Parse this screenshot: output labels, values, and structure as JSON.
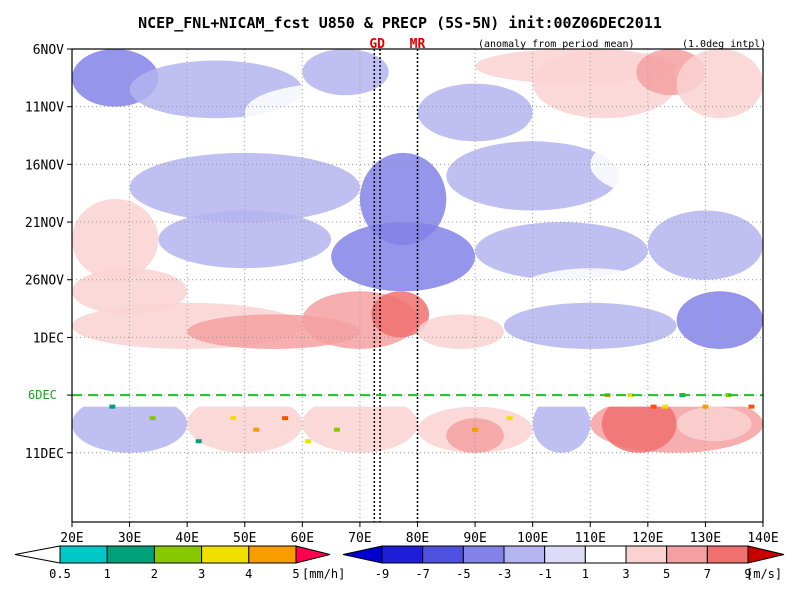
{
  "chart_data": {
    "type": "heatmap",
    "title": "NCEP_FNL+NICAM_fcst U850 & PRECP (5S-5N) init:00Z06DEC2011",
    "note_left": "(anomaly from period mean)",
    "note_right": "(1.0deg intpl)",
    "marker_labels": [
      "GD",
      "MR"
    ],
    "marker_lines_lon": [
      72.5,
      73.5,
      80
    ],
    "x_axis": {
      "min": 20,
      "max": 140,
      "ticks": [
        20,
        30,
        40,
        50,
        60,
        70,
        80,
        90,
        100,
        110,
        120,
        130,
        140
      ],
      "tick_labels": [
        "20E",
        "30E",
        "40E",
        "50E",
        "60E",
        "70E",
        "80E",
        "90E",
        "100E",
        "110E",
        "120E",
        "130E",
        "140E"
      ]
    },
    "y_axis": {
      "start": "6NOV",
      "span_days": 41,
      "ticks_day": [
        0,
        5,
        10,
        15,
        20,
        25,
        30,
        35
      ],
      "tick_labels": [
        "6NOV",
        "11NOV",
        "16NOV",
        "21NOV",
        "26NOV",
        "1DEC",
        "6DEC",
        "11DEC"
      ],
      "inverted": true
    },
    "grid": true,
    "data_gap_days": [
      26,
      31
    ],
    "forecast_init_day": 30,
    "forecast_init_label": "6DEC",
    "precip_legend": {
      "labels": [
        "0.5",
        "1",
        "2",
        "3",
        "4",
        "5"
      ],
      "unit": "[mm/h]",
      "colors": [
        "#00c8c8",
        "#00a078",
        "#88c800",
        "#f0e000",
        "#f89c00",
        "#ff5000",
        "#ff0050"
      ]
    },
    "wind_legend": {
      "labels": [
        "-9",
        "-7",
        "-5",
        "-3",
        "-1",
        "1",
        "3",
        "5",
        "7",
        "9"
      ],
      "unit": "[m/s]",
      "colors": [
        "#0000d0",
        "#1e1ed8",
        "#5050e0",
        "#8282e8",
        "#b4b4f0",
        "#dcdcf8",
        "#ffffff",
        "#fad2d2",
        "#f5a0a0",
        "#f07070",
        "#e84040",
        "#e01010",
        "#c80000"
      ]
    },
    "u850_anomaly_regions": [
      {
        "lon": [
          20,
          35
        ],
        "day": [
          0,
          5
        ],
        "u": -4
      },
      {
        "lon": [
          30,
          60
        ],
        "day": [
          1,
          6
        ],
        "u": -3
      },
      {
        "lon": [
          50,
          80
        ],
        "day": [
          3,
          8
        ],
        "u": 2
      },
      {
        "lon": [
          60,
          75
        ],
        "day": [
          0,
          4
        ],
        "u": -3
      },
      {
        "lon": [
          90,
          125
        ],
        "day": [
          0,
          3
        ],
        "u": 3
      },
      {
        "lon": [
          100,
          125
        ],
        "day": [
          0,
          6
        ],
        "u": 4
      },
      {
        "lon": [
          118,
          130
        ],
        "day": [
          0,
          4
        ],
        "u": 6
      },
      {
        "lon": [
          125,
          140
        ],
        "day": [
          0,
          6
        ],
        "u": 3
      },
      {
        "lon": [
          80,
          100
        ],
        "day": [
          3,
          8
        ],
        "u": -3
      },
      {
        "lon": [
          20,
          45
        ],
        "day": [
          7,
          13
        ],
        "u": 2
      },
      {
        "lon": [
          30,
          70
        ],
        "day": [
          9,
          15
        ],
        "u": -3
      },
      {
        "lon": [
          70,
          85
        ],
        "day": [
          9,
          17
        ],
        "u": -5
      },
      {
        "lon": [
          85,
          115
        ],
        "day": [
          8,
          14
        ],
        "u": -2
      },
      {
        "lon": [
          110,
          140
        ],
        "day": [
          7,
          13
        ],
        "u": 2
      },
      {
        "lon": [
          20,
          35
        ],
        "day": [
          13,
          20
        ],
        "u": 3
      },
      {
        "lon": [
          35,
          65
        ],
        "day": [
          14,
          19
        ],
        "u": -3
      },
      {
        "lon": [
          65,
          90
        ],
        "day": [
          15,
          21
        ],
        "u": -5
      },
      {
        "lon": [
          90,
          120
        ],
        "day": [
          15,
          20
        ],
        "u": -3
      },
      {
        "lon": [
          120,
          140
        ],
        "day": [
          14,
          20
        ],
        "u": -2
      },
      {
        "lon": [
          20,
          40
        ],
        "day": [
          19,
          23
        ],
        "u": 4
      },
      {
        "lon": [
          40,
          70
        ],
        "day": [
          19,
          24
        ],
        "u": 2
      },
      {
        "lon": [
          95,
          125
        ],
        "day": [
          19,
          25
        ],
        "u": 2
      },
      {
        "lon": [
          125,
          140
        ],
        "day": [
          21,
          26
        ],
        "u": -5
      },
      {
        "lon": [
          20,
          60
        ],
        "day": [
          22,
          26
        ],
        "u": 4
      },
      {
        "lon": [
          40,
          70
        ],
        "day": [
          23,
          26
        ],
        "u": 6
      },
      {
        "lon": [
          60,
          80
        ],
        "day": [
          21,
          26
        ],
        "u": 5
      },
      {
        "lon": [
          72,
          82
        ],
        "day": [
          21,
          25
        ],
        "u": 8
      },
      {
        "lon": [
          80,
          95
        ],
        "day": [
          23,
          26
        ],
        "u": 3
      },
      {
        "lon": [
          95,
          125
        ],
        "day": [
          22,
          26
        ],
        "u": -2
      },
      {
        "lon": [
          20,
          40
        ],
        "day": [
          30,
          35
        ],
        "u": -2
      },
      {
        "lon": [
          40,
          60
        ],
        "day": [
          30,
          35
        ],
        "u": 3
      },
      {
        "lon": [
          60,
          80
        ],
        "day": [
          30,
          35
        ],
        "u": 3
      },
      {
        "lon": [
          80,
          100
        ],
        "day": [
          31,
          35
        ],
        "u": 4
      },
      {
        "lon": [
          85,
          95
        ],
        "day": [
          32,
          35
        ],
        "u": 6
      },
      {
        "lon": [
          100,
          110
        ],
        "day": [
          30,
          35
        ],
        "u": -2
      },
      {
        "lon": [
          110,
          140
        ],
        "day": [
          30,
          35
        ],
        "u": 5
      },
      {
        "lon": [
          112,
          125
        ],
        "day": [
          30,
          35
        ],
        "u": 8
      },
      {
        "lon": [
          125,
          138
        ],
        "day": [
          31,
          34
        ],
        "u": 4
      }
    ],
    "precip_spots": [
      {
        "lon": 27,
        "day": 31,
        "mm_h": 1
      },
      {
        "lon": 34,
        "day": 32,
        "mm_h": 2
      },
      {
        "lon": 48,
        "day": 32,
        "mm_h": 3
      },
      {
        "lon": 52,
        "day": 33,
        "mm_h": 4
      },
      {
        "lon": 57,
        "day": 32,
        "mm_h": 5
      },
      {
        "lon": 66,
        "day": 33,
        "mm_h": 2
      },
      {
        "lon": 90,
        "day": 33,
        "mm_h": 4
      },
      {
        "lon": 96,
        "day": 32,
        "mm_h": 3
      },
      {
        "lon": 113,
        "day": 30,
        "mm_h": 4
      },
      {
        "lon": 117,
        "day": 30,
        "mm_h": 3
      },
      {
        "lon": 121,
        "day": 31,
        "mm_h": 5
      },
      {
        "lon": 126,
        "day": 30,
        "mm_h": 1
      },
      {
        "lon": 130,
        "day": 31,
        "mm_h": 4
      },
      {
        "lon": 134,
        "day": 30,
        "mm_h": 2
      },
      {
        "lon": 138,
        "day": 31,
        "mm_h": 5
      },
      {
        "lon": 123,
        "day": 31,
        "mm_h": 3
      },
      {
        "lon": 42,
        "day": 34,
        "mm_h": 1
      },
      {
        "lon": 61,
        "day": 34,
        "mm_h": 3
      }
    ]
  }
}
